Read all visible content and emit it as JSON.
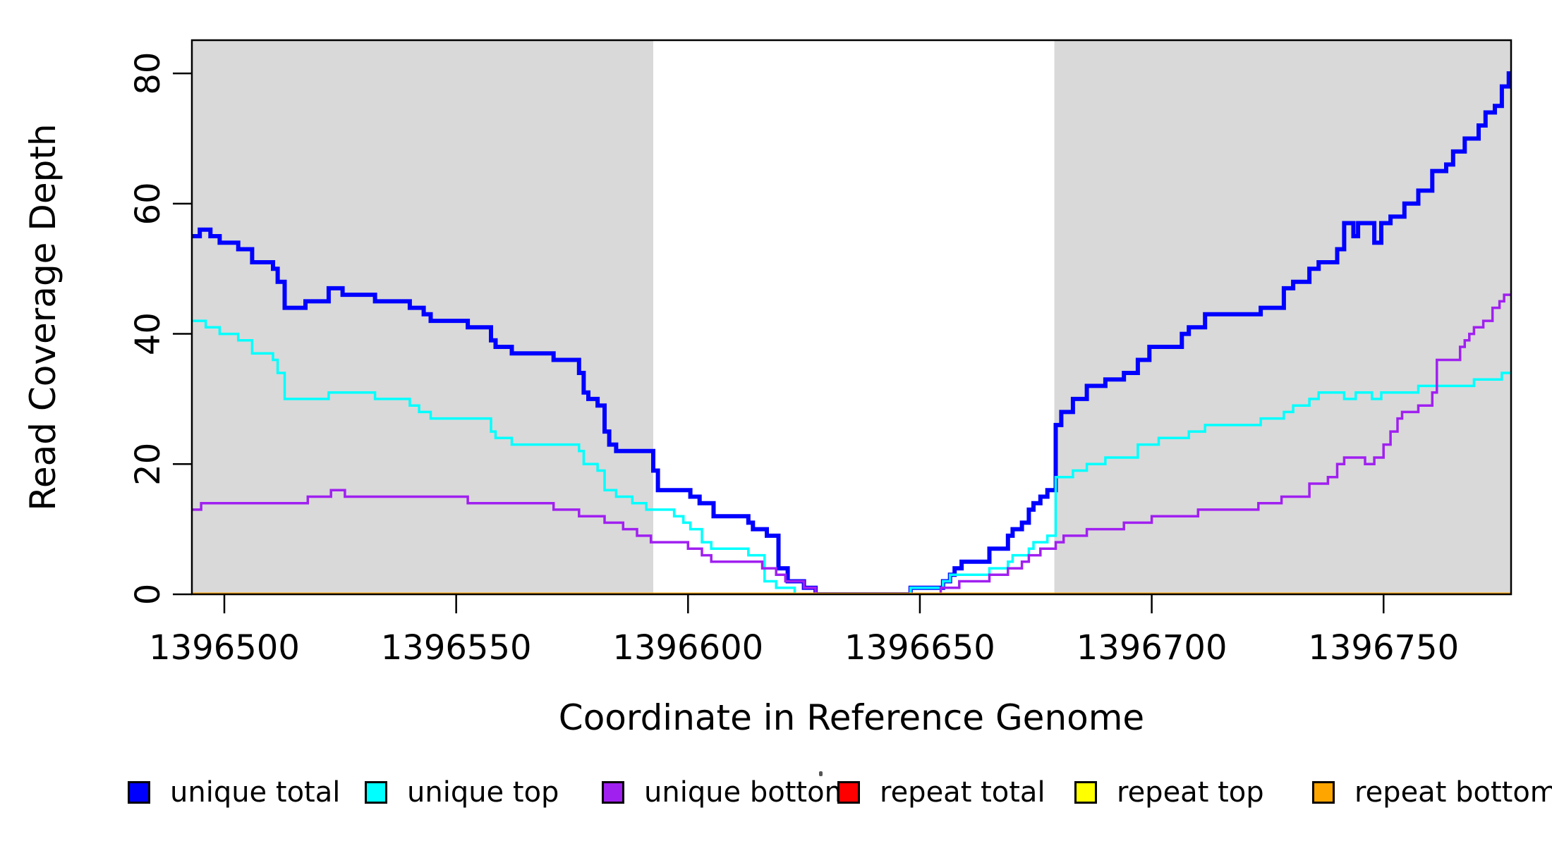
{
  "chart_data": {
    "type": "line",
    "subtype": "step-after",
    "title": "",
    "xlabel": "Coordinate in Reference Genome",
    "ylabel": "Read Coverage Depth",
    "xlim": [
      1396493.0,
      1396777.5
    ],
    "ylim": [
      0,
      85.1
    ],
    "x_ticks": [
      1396500,
      1396550,
      1396600,
      1396650,
      1396700,
      1396750
    ],
    "y_ticks": [
      0,
      20,
      40,
      60,
      80
    ],
    "grid": "off",
    "legend_position": "bottom",
    "background_color": "#ffffff",
    "shaded_region_color": "#d9d9d9",
    "shaded_regions": [
      {
        "name": "left-gray-region",
        "x0": 1396493.0,
        "x1": 1396592.5
      },
      {
        "name": "right-gray-region",
        "x0": 1396679.0,
        "x1": 1396777.5
      }
    ],
    "series": [
      {
        "name": "unique total",
        "color": "#0000ff",
        "width": 6,
        "points": [
          [
            1396493,
            55
          ],
          [
            1396494.7,
            56
          ],
          [
            1396497,
            55
          ],
          [
            1396499,
            54
          ],
          [
            1396503,
            53
          ],
          [
            1396506,
            51
          ],
          [
            1396510.5,
            50
          ],
          [
            1396511.5,
            48
          ],
          [
            1396513,
            44
          ],
          [
            1396517.5,
            45
          ],
          [
            1396522.5,
            47
          ],
          [
            1396525.5,
            46
          ],
          [
            1396532.5,
            45
          ],
          [
            1396540,
            44
          ],
          [
            1396543,
            43
          ],
          [
            1396544.5,
            42
          ],
          [
            1396552.5,
            41
          ],
          [
            1396557.5,
            39
          ],
          [
            1396558.5,
            38
          ],
          [
            1396562,
            37
          ],
          [
            1396571,
            36
          ],
          [
            1396576.5,
            34
          ],
          [
            1396577.5,
            31
          ],
          [
            1396578.5,
            30
          ],
          [
            1396580.5,
            29
          ],
          [
            1396582,
            25
          ],
          [
            1396583,
            23
          ],
          [
            1396584.5,
            22
          ],
          [
            1396592.5,
            19
          ],
          [
            1396593.5,
            16
          ],
          [
            1396600.5,
            15
          ],
          [
            1396602.5,
            14
          ],
          [
            1396605.5,
            12
          ],
          [
            1396613,
            11
          ],
          [
            1396614,
            10
          ],
          [
            1396617,
            9
          ],
          [
            1396619.5,
            4
          ],
          [
            1396621.5,
            2
          ],
          [
            1396625,
            1
          ],
          [
            1396627.5,
            0
          ],
          [
            1396648,
            1
          ],
          [
            1396655,
            2
          ],
          [
            1396656.5,
            3
          ],
          [
            1396657.5,
            4
          ],
          [
            1396659,
            5
          ],
          [
            1396665,
            7
          ],
          [
            1396669,
            9
          ],
          [
            1396670,
            10
          ],
          [
            1396672,
            11
          ],
          [
            1396673.5,
            13
          ],
          [
            1396674.5,
            14
          ],
          [
            1396676,
            15
          ],
          [
            1396677.5,
            16
          ],
          [
            1396679.3,
            26
          ],
          [
            1396680.5,
            28
          ],
          [
            1396683,
            30
          ],
          [
            1396686,
            32
          ],
          [
            1396690,
            33
          ],
          [
            1396694,
            34
          ],
          [
            1396697,
            36
          ],
          [
            1396699.5,
            38
          ],
          [
            1396706.5,
            40
          ],
          [
            1396708,
            41
          ],
          [
            1396711.5,
            43
          ],
          [
            1396723.5,
            44
          ],
          [
            1396728.5,
            47
          ],
          [
            1396730.5,
            48
          ],
          [
            1396734,
            50
          ],
          [
            1396736,
            51
          ],
          [
            1396740,
            53
          ],
          [
            1396741.5,
            57
          ],
          [
            1396743.5,
            55
          ],
          [
            1396744.5,
            57
          ],
          [
            1396748,
            54
          ],
          [
            1396749.5,
            57
          ],
          [
            1396751.5,
            58
          ],
          [
            1396754.5,
            60
          ],
          [
            1396757.5,
            62
          ],
          [
            1396760.5,
            65
          ],
          [
            1396763.5,
            66
          ],
          [
            1396765,
            68
          ],
          [
            1396767.5,
            70
          ],
          [
            1396770.5,
            72
          ],
          [
            1396772,
            74
          ],
          [
            1396774,
            75
          ],
          [
            1396775.5,
            78
          ],
          [
            1396777,
            80
          ]
        ]
      },
      {
        "name": "unique top",
        "color": "#00ffff",
        "width": 3.5,
        "points": [
          [
            1396493,
            42
          ],
          [
            1396496,
            41
          ],
          [
            1396499,
            40
          ],
          [
            1396503,
            39
          ],
          [
            1396506,
            37
          ],
          [
            1396510.5,
            36
          ],
          [
            1396511.5,
            34
          ],
          [
            1396513,
            30
          ],
          [
            1396522.5,
            31
          ],
          [
            1396532.5,
            30
          ],
          [
            1396540,
            29
          ],
          [
            1396542,
            28
          ],
          [
            1396544.5,
            27
          ],
          [
            1396557.5,
            25
          ],
          [
            1396558.5,
            24
          ],
          [
            1396562,
            23
          ],
          [
            1396576.5,
            22
          ],
          [
            1396577.5,
            20
          ],
          [
            1396580.5,
            19
          ],
          [
            1396582,
            16
          ],
          [
            1396584.5,
            15
          ],
          [
            1396588,
            14
          ],
          [
            1396591,
            13
          ],
          [
            1396597,
            12
          ],
          [
            1396599,
            11
          ],
          [
            1396600.5,
            10
          ],
          [
            1396603,
            8
          ],
          [
            1396605,
            7
          ],
          [
            1396613,
            6
          ],
          [
            1396616.5,
            2
          ],
          [
            1396619,
            1
          ],
          [
            1396623,
            0
          ],
          [
            1396648,
            1
          ],
          [
            1396655,
            2
          ],
          [
            1396656.5,
            3
          ],
          [
            1396665,
            4
          ],
          [
            1396669,
            5
          ],
          [
            1396670,
            6
          ],
          [
            1396673.5,
            7
          ],
          [
            1396674.5,
            8
          ],
          [
            1396677.5,
            9
          ],
          [
            1396679.3,
            18
          ],
          [
            1396683,
            19
          ],
          [
            1396686,
            20
          ],
          [
            1396690,
            21
          ],
          [
            1396697,
            23
          ],
          [
            1396701.5,
            24
          ],
          [
            1396708,
            25
          ],
          [
            1396711.5,
            26
          ],
          [
            1396723.5,
            27
          ],
          [
            1396728.5,
            28
          ],
          [
            1396730.5,
            29
          ],
          [
            1396734,
            30
          ],
          [
            1396736,
            31
          ],
          [
            1396741.5,
            30
          ],
          [
            1396744,
            31
          ],
          [
            1396747.5,
            30
          ],
          [
            1396749.5,
            31
          ],
          [
            1396757.5,
            32
          ],
          [
            1396769.5,
            33
          ],
          [
            1396775.5,
            34
          ]
        ]
      },
      {
        "name": "unique bottom",
        "color": "#a020f0",
        "width": 3.5,
        "points": [
          [
            1396493,
            13
          ],
          [
            1396495,
            14
          ],
          [
            1396518,
            15
          ],
          [
            1396523,
            16
          ],
          [
            1396526,
            15
          ],
          [
            1396552.5,
            14
          ],
          [
            1396571,
            13
          ],
          [
            1396576.5,
            12
          ],
          [
            1396582,
            11
          ],
          [
            1396586,
            10
          ],
          [
            1396589,
            9
          ],
          [
            1396592,
            8
          ],
          [
            1396600,
            7
          ],
          [
            1396603,
            6
          ],
          [
            1396605,
            5
          ],
          [
            1396616,
            4
          ],
          [
            1396619,
            3
          ],
          [
            1396621,
            2
          ],
          [
            1396625,
            1
          ],
          [
            1396627.5,
            0
          ],
          [
            1396654.5,
            1
          ],
          [
            1396658.5,
            2
          ],
          [
            1396665,
            3
          ],
          [
            1396669,
            4
          ],
          [
            1396672,
            5
          ],
          [
            1396673.5,
            6
          ],
          [
            1396676,
            7
          ],
          [
            1396679.3,
            8
          ],
          [
            1396681,
            9
          ],
          [
            1396686,
            10
          ],
          [
            1396694,
            11
          ],
          [
            1396700,
            12
          ],
          [
            1396710,
            13
          ],
          [
            1396723,
            14
          ],
          [
            1396728,
            15
          ],
          [
            1396734,
            17
          ],
          [
            1396738,
            18
          ],
          [
            1396740,
            20
          ],
          [
            1396741.5,
            21
          ],
          [
            1396746,
            20
          ],
          [
            1396748,
            21
          ],
          [
            1396750,
            23
          ],
          [
            1396751.5,
            25
          ],
          [
            1396753,
            27
          ],
          [
            1396754,
            28
          ],
          [
            1396757.5,
            29
          ],
          [
            1396760.5,
            31
          ],
          [
            1396761.5,
            36
          ],
          [
            1396766.5,
            38
          ],
          [
            1396767.5,
            39
          ],
          [
            1396768.5,
            40
          ],
          [
            1396769.5,
            41
          ],
          [
            1396771.5,
            42
          ],
          [
            1396773.5,
            44
          ],
          [
            1396775,
            45
          ],
          [
            1396776,
            46
          ]
        ]
      },
      {
        "name": "repeat total",
        "color": "#ff0000",
        "width": 3.5,
        "points": [
          [
            1396493,
            0
          ],
          [
            1396777.5,
            0
          ]
        ]
      },
      {
        "name": "repeat top",
        "color": "#ffff00",
        "width": 3.5,
        "points": [
          [
            1396493,
            0
          ],
          [
            1396777.5,
            0
          ]
        ]
      },
      {
        "name": "repeat bottom",
        "color": "#ffa500",
        "width": 5,
        "points": [
          [
            1396493,
            0
          ],
          [
            1396777.5,
            0
          ]
        ]
      }
    ]
  },
  "legend": {
    "items": [
      {
        "label": "unique total",
        "color": "#0000ff"
      },
      {
        "label": "unique top",
        "color": "#00ffff"
      },
      {
        "label": "unique bottom",
        "color": "#a020f0"
      },
      {
        "label": "repeat total",
        "color": "#ff0000"
      },
      {
        "label": "repeat top",
        "color": "#ffff00"
      },
      {
        "label": "repeat bottom",
        "color": "#ffa500"
      }
    ]
  },
  "axes": {
    "x_label": "Coordinate in Reference Genome",
    "y_label": "Read Coverage Depth"
  }
}
